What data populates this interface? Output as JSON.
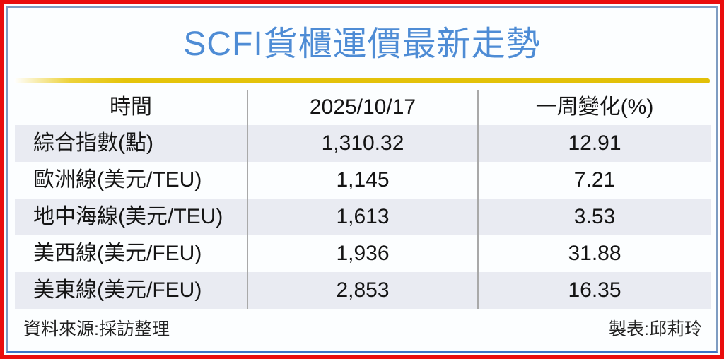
{
  "title": "SCFI貨櫃運價最新走勢",
  "table": {
    "headers": [
      "時間",
      "2025/10/17",
      "一周變化(%)"
    ],
    "rows": [
      {
        "label": "綜合指數(點)",
        "value": "1,310.32",
        "change": "12.91"
      },
      {
        "label": "歐洲線(美元/TEU)",
        "value": "1,145",
        "change": "7.21"
      },
      {
        "label": "地中海線(美元/TEU)",
        "value": "1,613",
        "change": "3.53"
      },
      {
        "label": "美西線(美元/FEU)",
        "value": "1,936",
        "change": "31.88"
      },
      {
        "label": "美東線(美元/FEU)",
        "value": "2,853",
        "change": "16.35"
      }
    ]
  },
  "footer": {
    "source": "資料來源:採訪整理",
    "credit": "製表:邱莉玲"
  },
  "colors": {
    "title_blue": "#4E8CD5",
    "border_red": "#EA0D0D",
    "inner_border_blue": "#7E9CC2",
    "bottom_border_blue": "#3E74C6",
    "gold_bar": "#E5C40B",
    "row_shade": "#E9EBF2",
    "divider_gray": "#A9A9A9",
    "text": "#141414"
  },
  "chart_data": {
    "type": "table",
    "title": "SCFI貨櫃運價最新走勢",
    "columns": [
      "時間",
      "2025/10/17",
      "一周變化(%)"
    ],
    "rows": [
      [
        "綜合指數(點)",
        1310.32,
        12.91
      ],
      [
        "歐洲線(美元/TEU)",
        1145,
        7.21
      ],
      [
        "地中海線(美元/TEU)",
        1613,
        3.53
      ],
      [
        "美西線(美元/FEU)",
        1936,
        31.88
      ],
      [
        "美東線(美元/FEU)",
        2853,
        16.35
      ]
    ],
    "source": "資料來源:採訪整理",
    "credit": "製表:邱莉玲"
  }
}
